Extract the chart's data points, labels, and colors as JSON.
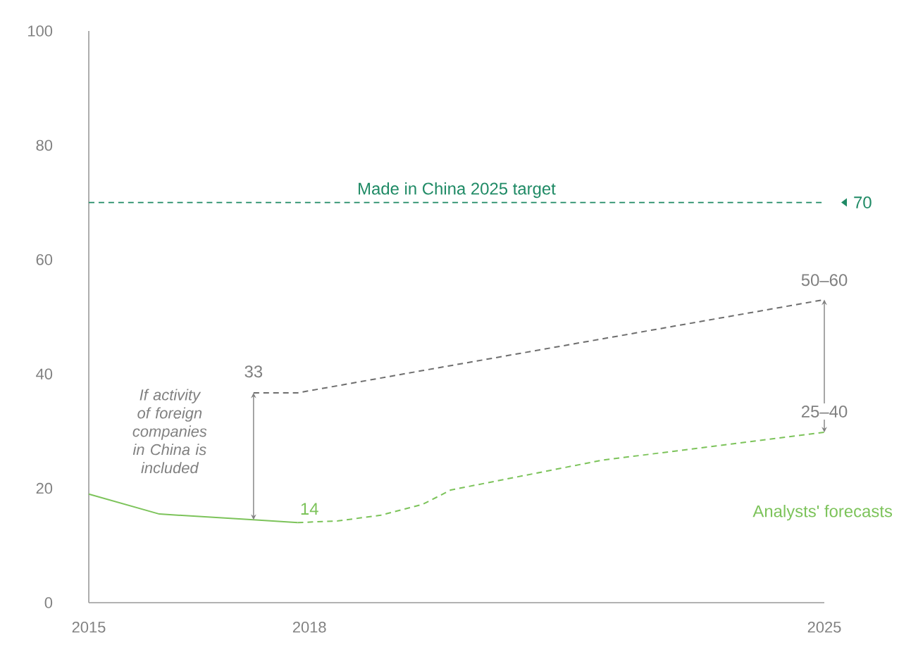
{
  "chart_data": {
    "type": "line",
    "xlim": [
      2015,
      2025
    ],
    "ylim": [
      0,
      100
    ],
    "xticks": [
      2015,
      2018,
      2025
    ],
    "yticks": [
      0,
      20,
      40,
      60,
      80,
      100
    ],
    "series": [
      {
        "color": "#7cc35a",
        "line_style": "solid",
        "x": [
          2015,
          2015.96,
          2017.24,
          2017.84
        ],
        "values": [
          19,
          15.5,
          14.5,
          14
        ]
      },
      {
        "name": "Analysts' forecasts",
        "color": "#7cc35a",
        "line_style": "dashed",
        "x": [
          2017.84,
          2018.39,
          2018.97,
          2019.54,
          2019.92,
          2021.97,
          2025
        ],
        "values": [
          14,
          14.3,
          15.3,
          17.2,
          19.7,
          24.9,
          29.8
        ]
      },
      {
        "color": "#6e6e6e",
        "line_style": "dashed",
        "x": [
          2017.24,
          2017.84,
          2019.54,
          2025
        ],
        "values": [
          36.7,
          36.7,
          40.6,
          53
        ]
      }
    ],
    "ref_lines": [
      {
        "axis": "y",
        "value": 70,
        "label": "Made in China 2025 target",
        "color": "#1f8a65",
        "line_style": "dashed"
      }
    ],
    "annotations": [
      "If activity of foreign companies in China is included",
      {
        "text": "33",
        "x": 2017.24,
        "y": 37
      },
      {
        "text": "14",
        "x": 2017.84,
        "y": 14
      },
      {
        "text": "50–60",
        "x": 2025,
        "y": 53
      },
      {
        "text": "25–40",
        "x": 2025,
        "y": 30
      },
      {
        "text": "70",
        "x": 2025,
        "y": 70
      }
    ]
  }
}
